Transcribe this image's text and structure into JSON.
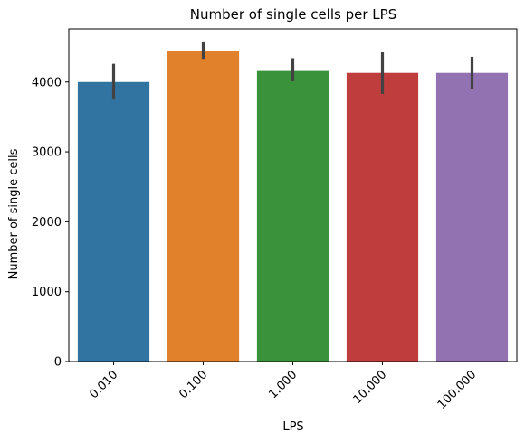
{
  "chart_data": {
    "type": "bar",
    "title": "Number of single cells per LPS",
    "xlabel": "LPS",
    "ylabel": "Number of single cells",
    "categories": [
      "0.010",
      "0.100",
      "1.000",
      "10.000",
      "100.000"
    ],
    "values": [
      4000,
      4450,
      4170,
      4130,
      4130
    ],
    "error_low": [
      3750,
      4330,
      4010,
      3830,
      3900
    ],
    "error_high": [
      4260,
      4580,
      4340,
      4430,
      4360
    ],
    "colors": [
      "#3274a1",
      "#e1812c",
      "#3a923a",
      "#c03d3e",
      "#9372b2"
    ],
    "error_color": "#424242",
    "ylim": [
      0,
      4760
    ],
    "yticks": [
      0,
      1000,
      2000,
      3000,
      4000
    ],
    "grid": false,
    "legend": "none"
  }
}
